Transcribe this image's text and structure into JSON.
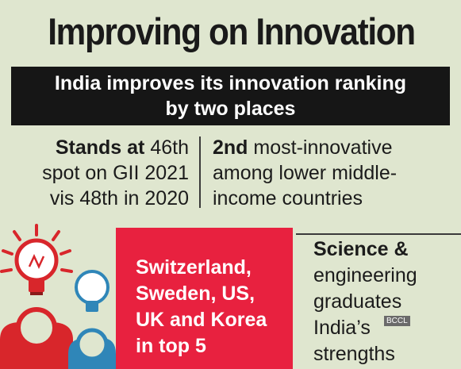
{
  "headline": "Improving on Innovation",
  "banner": {
    "line1": "India improves its innovation ranking",
    "line2": "by two places"
  },
  "stat_left": {
    "bold": "Stands at",
    "l1_rest": " 46th",
    "l2": "spot on GII 2021",
    "l3": "vis 48th in 2020"
  },
  "stat_right": {
    "bold": "2nd",
    "l1_rest": " most-innovative",
    "l2": "among lower middle-",
    "l3": "income countries"
  },
  "top5": {
    "l1": "Switzerland,",
    "l2": "Sweden, US,",
    "l3": "UK and Korea",
    "l4": "in top 5"
  },
  "strengths": {
    "bold": "Science &",
    "l2": "engineering",
    "l3": "graduates",
    "l4": "India’s",
    "l5": "strengths"
  },
  "watermark": "BCCL",
  "colors": {
    "background": "#dfe6cf",
    "banner": "#161616",
    "accent_red": "#e8213f",
    "icon_red": "#d8262b",
    "icon_blue": "#2f86b8"
  },
  "icons": [
    "light-bulb-icon",
    "person-icon"
  ]
}
